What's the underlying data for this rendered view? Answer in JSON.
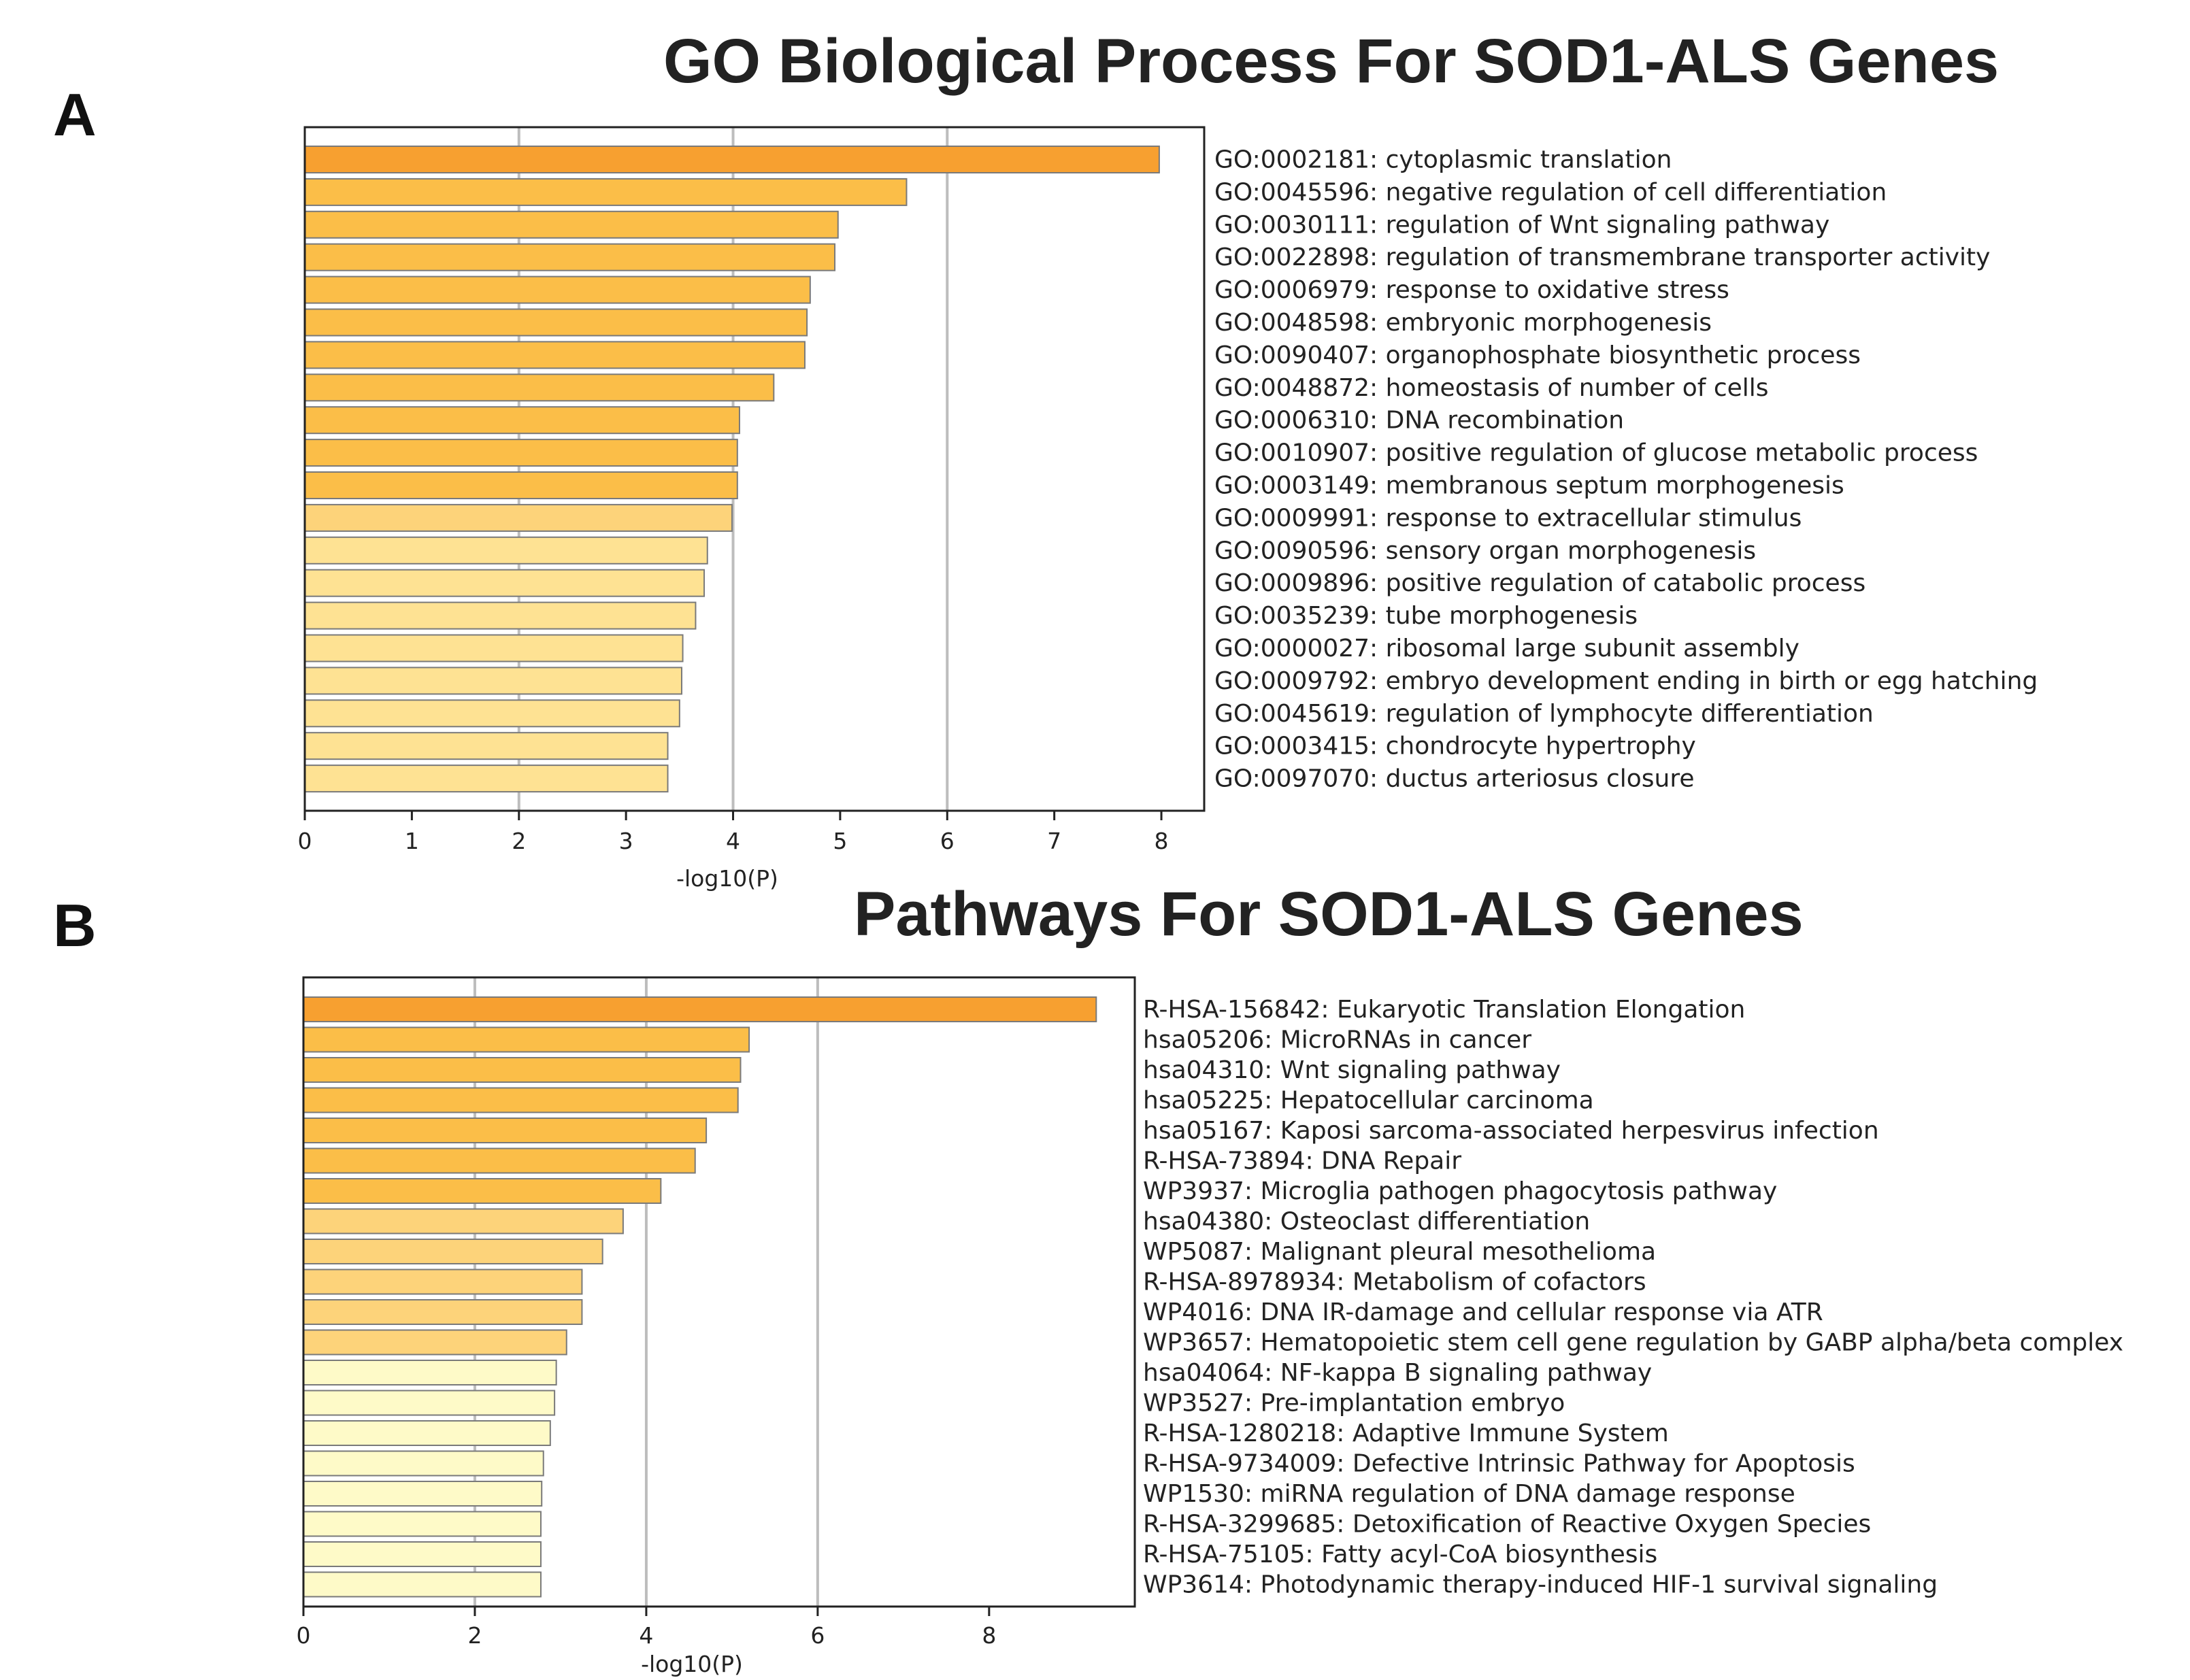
{
  "panels": [
    {
      "letter": "A",
      "title": "GO Biological Process For SOD1-ALS Genes"
    },
    {
      "letter": "B",
      "title": "Pathways For SOD1-ALS Genes"
    }
  ],
  "chart_data": [
    {
      "type": "bar",
      "orientation": "horizontal",
      "title": "GO Biological Process For SOD1-ALS Genes",
      "xlabel": "-log10(P)",
      "ylabel": "",
      "xlim": [
        0,
        8.4
      ],
      "xticks": [
        "0",
        "1",
        "2",
        "3",
        "4",
        "5",
        "6",
        "7",
        "8"
      ],
      "gridlines_at": [
        2,
        4,
        6
      ],
      "categories": [
        "GO:0002181: cytoplasmic translation",
        "GO:0045596: negative regulation of cell differentiation",
        "GO:0030111: regulation of Wnt signaling pathway",
        "GO:0022898: regulation of transmembrane transporter activity",
        "GO:0006979: response to oxidative stress",
        "GO:0048598: embryonic morphogenesis",
        "GO:0090407: organophosphate biosynthetic process",
        "GO:0048872: homeostasis of number of cells",
        "GO:0006310: DNA recombination",
        "GO:0010907: positive regulation of glucose metabolic process",
        "GO:0003149: membranous septum morphogenesis",
        "GO:0009991: response to extracellular stimulus",
        "GO:0090596: sensory organ morphogenesis",
        "GO:0009896: positive regulation of catabolic process",
        "GO:0035239: tube morphogenesis",
        "GO:0000027: ribosomal large subunit assembly",
        "GO:0009792: embryo development ending in birth or egg hatching",
        "GO:0045619: regulation of lymphocyte differentiation",
        "GO:0003415: chondrocyte hypertrophy",
        "GO:0097070: ductus arteriosus closure"
      ],
      "values": [
        7.98,
        5.62,
        4.98,
        4.95,
        4.72,
        4.69,
        4.67,
        4.38,
        4.06,
        4.04,
        4.04,
        3.99,
        3.76,
        3.73,
        3.65,
        3.53,
        3.52,
        3.5,
        3.39,
        3.39
      ],
      "colors": [
        "#f7a030",
        "#fbbe48",
        "#fbbe48",
        "#fbbe48",
        "#fbbe48",
        "#fbbe48",
        "#fbbe48",
        "#fbbe48",
        "#fbbe48",
        "#fbbe48",
        "#fbbe48",
        "#fdd37a",
        "#fee293",
        "#fee293",
        "#fee293",
        "#fee293",
        "#fee293",
        "#fee293",
        "#fee293",
        "#fee293"
      ]
    },
    {
      "type": "bar",
      "orientation": "horizontal",
      "title": "Pathways For SOD1-ALS Genes",
      "xlabel": "-log10(P)",
      "ylabel": "",
      "xlim": [
        0,
        9.7
      ],
      "xticks": [
        "0",
        "2",
        "4",
        "6",
        "8"
      ],
      "gridlines_at": [
        2,
        4,
        6
      ],
      "categories": [
        "R-HSA-156842: Eukaryotic Translation Elongation",
        "hsa05206: MicroRNAs in cancer",
        "hsa04310: Wnt signaling pathway",
        "hsa05225: Hepatocellular carcinoma",
        "hsa05167: Kaposi sarcoma-associated herpesvirus infection",
        "R-HSA-73894: DNA Repair",
        "WP3937: Microglia pathogen phagocytosis pathway",
        "hsa04380: Osteoclast differentiation",
        "WP5087: Malignant pleural mesothelioma",
        "R-HSA-8978934: Metabolism of cofactors",
        "WP4016: DNA IR-damage and cellular response via ATR",
        "WP3657: Hematopoietic stem cell gene regulation by GABP alpha/beta complex",
        "hsa04064: NF-kappa B signaling pathway",
        "WP3527: Pre-implantation embryo",
        "R-HSA-1280218: Adaptive Immune System",
        "R-HSA-9734009: Defective Intrinsic Pathway for Apoptosis",
        "WP1530: miRNA regulation of DNA damage response",
        "R-HSA-3299685: Detoxification of Reactive Oxygen Species",
        "R-HSA-75105: Fatty acyl-CoA biosynthesis",
        "WP3614: Photodynamic therapy-induced HIF-1 survival signaling"
      ],
      "values": [
        9.25,
        5.2,
        5.1,
        5.07,
        4.7,
        4.57,
        4.17,
        3.73,
        3.49,
        3.25,
        3.25,
        3.07,
        2.95,
        2.93,
        2.88,
        2.8,
        2.78,
        2.77,
        2.77,
        2.77
      ],
      "colors": [
        "#f7a030",
        "#fbbe48",
        "#fbbe48",
        "#fbbe48",
        "#fbbe48",
        "#fbbe48",
        "#fbbe48",
        "#fdd37a",
        "#fdd37a",
        "#fdd37a",
        "#fdd37a",
        "#fdd37a",
        "#fefac8",
        "#fefac8",
        "#fefac8",
        "#fefac8",
        "#fefac8",
        "#fefac8",
        "#fefac8",
        "#fefac8"
      ]
    }
  ]
}
